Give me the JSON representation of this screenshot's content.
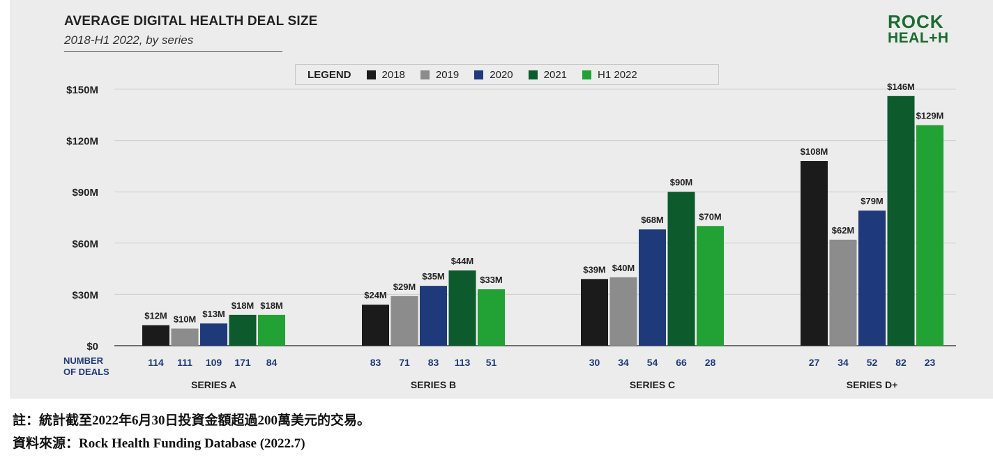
{
  "title": "AVERAGE DIGITAL HEALTH DEAL SIZE",
  "subtitle": "2018-H1 2022, by series",
  "logo": {
    "line1": "ROCK",
    "line2": "HEAL+H"
  },
  "legend": {
    "title": "LEGEND",
    "items": [
      {
        "label": "2018",
        "color": "#1b1b1b"
      },
      {
        "label": "2019",
        "color": "#8c8c8c"
      },
      {
        "label": "2020",
        "color": "#1f3a7a"
      },
      {
        "label": "2021",
        "color": "#0d5a2c"
      },
      {
        "label": "H1 2022",
        "color": "#22a135"
      }
    ]
  },
  "chart_data": {
    "type": "bar",
    "categories": [
      "SERIES A",
      "SERIES B",
      "SERIES C",
      "SERIES D+"
    ],
    "series": [
      {
        "name": "2018",
        "values": [
          12,
          24,
          39,
          108
        ],
        "labels": [
          "$12M",
          "$24M",
          "$39M",
          "$108M"
        ],
        "deals": [
          114,
          83,
          30,
          27
        ]
      },
      {
        "name": "2019",
        "values": [
          10,
          29,
          40,
          62
        ],
        "labels": [
          "$10M",
          "$29M",
          "$40M",
          "$62M"
        ],
        "deals": [
          111,
          71,
          34,
          34
        ]
      },
      {
        "name": "2020",
        "values": [
          13,
          35,
          68,
          79
        ],
        "labels": [
          "$13M",
          "$35M",
          "$68M",
          "$79M"
        ],
        "deals": [
          109,
          83,
          54,
          52
        ]
      },
      {
        "name": "2021",
        "values": [
          18,
          44,
          90,
          146
        ],
        "labels": [
          "$18M",
          "$44M",
          "$90M",
          "$146M"
        ],
        "deals": [
          171,
          113,
          66,
          82
        ]
      },
      {
        "name": "H1 2022",
        "values": [
          18,
          33,
          70,
          129
        ],
        "labels": [
          "$18M",
          "$33M",
          "$70M",
          "$129M"
        ],
        "deals": [
          84,
          51,
          28,
          23
        ]
      }
    ],
    "ylim": [
      0,
      150
    ],
    "yticks": [
      0,
      30,
      60,
      90,
      120,
      150
    ],
    "ytick_labels": [
      "$0",
      "$30M",
      "$60M",
      "$90M",
      "$120M",
      "$150M"
    ],
    "deals_label_line1": "NUMBER",
    "deals_label_line2": "OF DEALS",
    "grid": true,
    "legend_position": "top"
  },
  "notes": [
    "註：統計截至2022年6月30日投資金額超過200萬美元的交易。",
    "資料來源：Rock Health Funding Database (2022.7)"
  ]
}
